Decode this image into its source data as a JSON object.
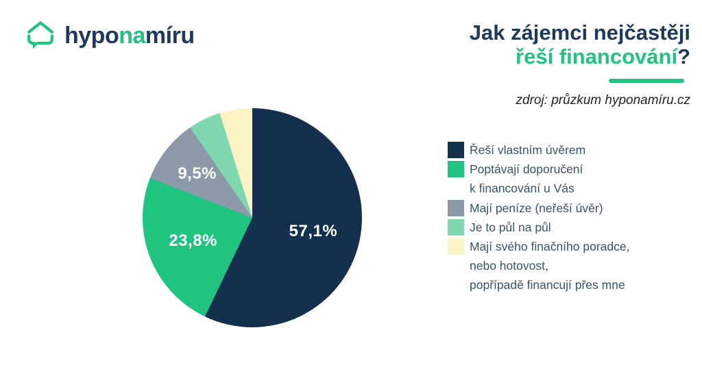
{
  "logo": {
    "part1": "hypo",
    "part2": "na",
    "part3": "míru"
  },
  "header": {
    "title_line1": "Jak zájemci nejčastěji",
    "title_line2": "řeší financování",
    "title_line2_suffix": "?",
    "source": "zdroj: průzkum hyponamíru.cz"
  },
  "colors": {
    "brand_navy": "#1D3A5C",
    "pie_navy": "#14304E",
    "green": "#1EC47F",
    "gray": "#8B99A9",
    "mint": "#7FD8B0",
    "yellow": "#FAF4C5",
    "legend_text": "#35536E",
    "source_text": "#222222"
  },
  "chart_data": {
    "type": "pie",
    "title": "Jak zájemci nejčastěji řeší financování?",
    "source": "zdroj: průzkum hyponamíru.cz",
    "start_angle_deg": 0,
    "direction": "clockwise",
    "legend_position": "right",
    "slices": [
      {
        "label": "Řeší vlastním úvěrem",
        "value": 57.1,
        "display": "57,1%",
        "color": "#14304E"
      },
      {
        "label": "Poptávají doporučení k financování u Vás",
        "value": 23.8,
        "display": "23,8%",
        "color": "#1EC47F"
      },
      {
        "label": "Mají peníze (neřeší úvěr)",
        "value": 9.5,
        "display": "9,5%",
        "color": "#8B99A9"
      },
      {
        "label": "Je to půl na půl",
        "value": 4.8,
        "display": "",
        "color": "#7FD8B0"
      },
      {
        "label": "Mají svého finačního poradce, nebo hotovost, popřípadě financují přes mne",
        "value": 4.8,
        "display": "",
        "color": "#FAF4C5"
      }
    ],
    "label_radius_factors": [
      0.57,
      0.58,
      0.64,
      0,
      0
    ]
  },
  "legend": {
    "items": [
      {
        "color": "#14304E",
        "lines": [
          "Řeší vlastním úvěrem"
        ]
      },
      {
        "color": "#1EC47F",
        "lines": [
          "Poptávají doporučení",
          "k financování u Vás"
        ]
      },
      {
        "color": "#8B99A9",
        "lines": [
          "Mají peníze (neřeší úvěr)"
        ]
      },
      {
        "color": "#7FD8B0",
        "lines": [
          "Je to půl na půl"
        ]
      },
      {
        "color": "#FAF4C5",
        "lines": [
          "Mají svého finačního poradce,",
          "nebo hotovost,",
          "popřípadě financují přes mne"
        ]
      }
    ]
  }
}
